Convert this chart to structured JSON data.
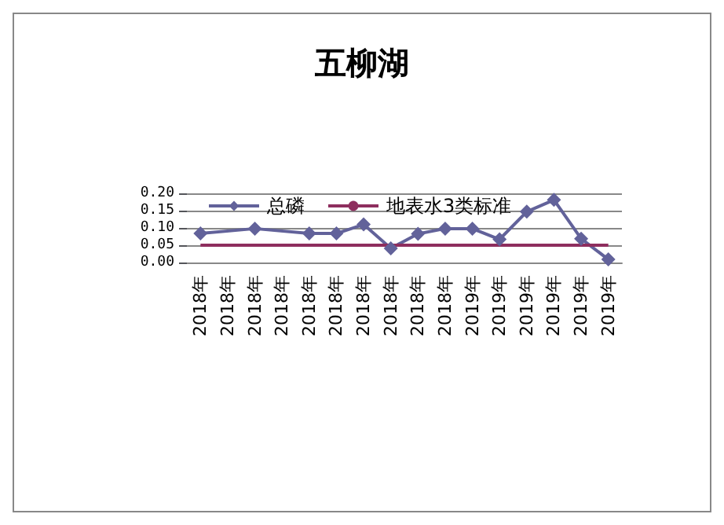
{
  "chart_data": {
    "type": "line",
    "title": "五柳湖",
    "categories": [
      "2018年",
      "2018年",
      "2018年",
      "2018年",
      "2018年",
      "2018年",
      "2018年",
      "2018年",
      "2018年",
      "2018年",
      "2019年",
      "2019年",
      "2019年",
      "2019年",
      "2019年",
      "2019年"
    ],
    "series": [
      {
        "name": "总磷",
        "color": "#62629a",
        "marker": "diamond",
        "values": [
          0.084,
          null,
          0.098,
          null,
          0.084,
          0.084,
          0.11,
          0.041,
          0.083,
          0.098,
          0.098,
          0.067,
          0.147,
          0.181,
          0.069,
          0.009
        ]
      },
      {
        "name": "地表水3类标准",
        "color": "#8e2e5e",
        "marker": "none",
        "values": [
          0.05,
          0.05,
          0.05,
          0.05,
          0.05,
          0.05,
          0.05,
          0.05,
          0.05,
          0.05,
          0.05,
          0.05,
          0.05,
          0.05,
          0.05,
          0.05
        ]
      }
    ],
    "ylim": [
      0,
      0.2
    ],
    "yticks": [
      {
        "value": 0,
        "label": "0.00"
      },
      {
        "value": 0.05,
        "label": "0.05"
      },
      {
        "value": 0.1,
        "label": "0.10"
      },
      {
        "value": 0.15,
        "label": "0.15"
      },
      {
        "value": 0.2,
        "label": "0.20"
      }
    ],
    "grid": "y",
    "legend": "top"
  }
}
